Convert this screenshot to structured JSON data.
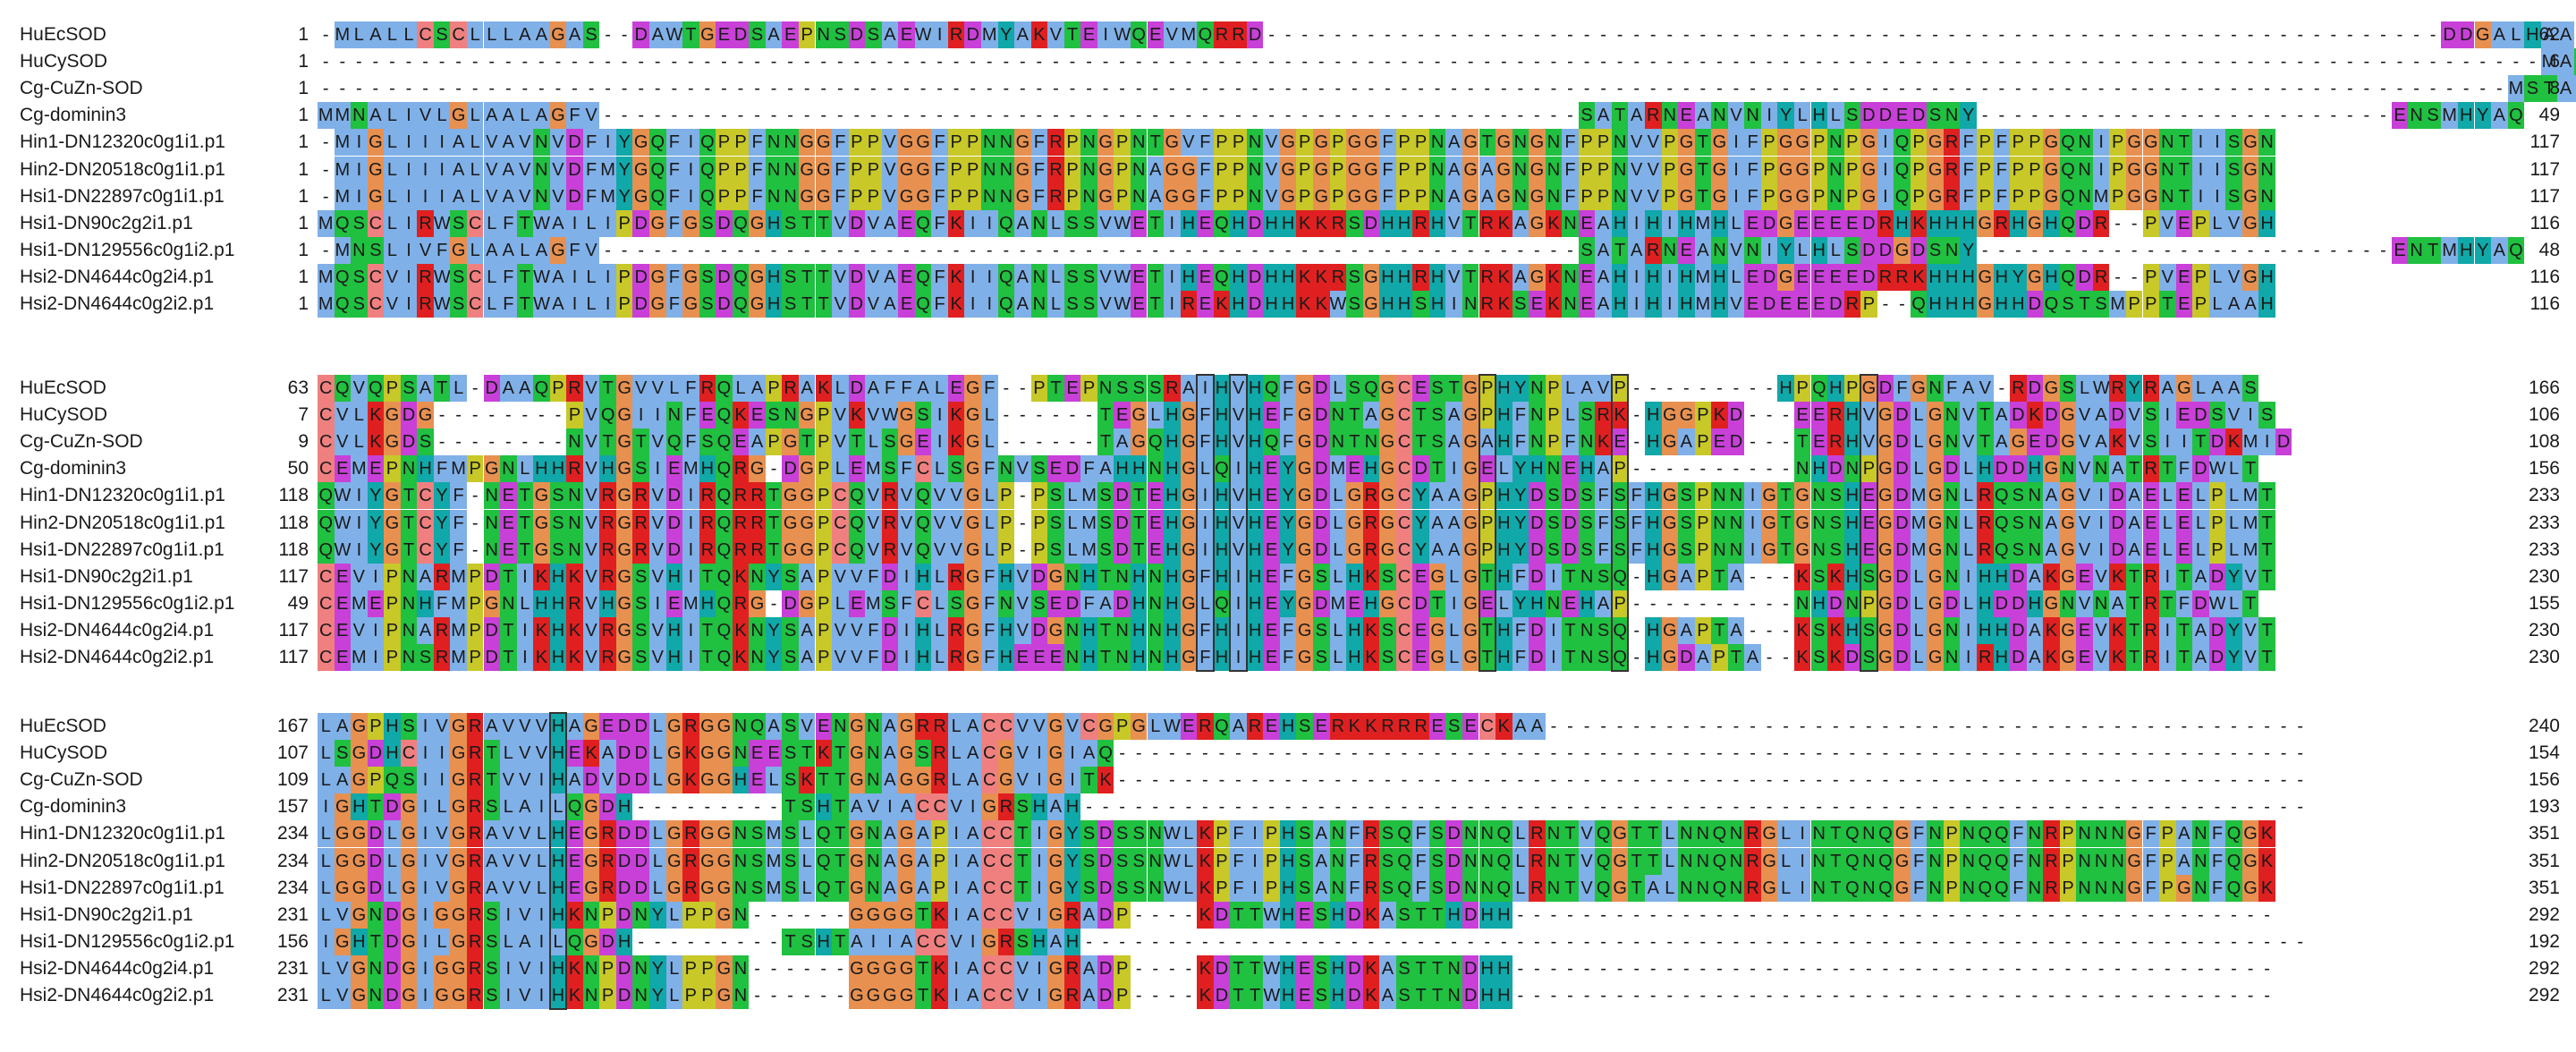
{
  "blocks": [
    {
      "rows": [
        {
          "name": "HuEcSOD",
          "start": "1",
          "end": "62",
          "seq": "-MLALLCSCLLLAAGAS--DAWTGEDSAEPNSDSAEWIRDMYAKVTEIWQEVMQRRD-----------------------------------------------------------------------DDGALHAA"
        },
        {
          "name": "HuCySOD",
          "start": "1",
          "end": "6",
          "seq": "--------------------------------------------------------------------------------------------------------------------------------------MATKAV"
        },
        {
          "name": "Cg-CuZn-SOD",
          "start": "1",
          "end": "8",
          "seq": "------------------------------------------------------------------------------------------------------------------------------------MSTALKAV"
        },
        {
          "name": "Cg-dominin3",
          "start": "1",
          "end": "49",
          "seq": "MMNALIVLGLAALAGFV-----------------------------------------------------------SATARNEANVNIYLHLSDDEDSNY-------------------------ENSMHYAQ"
        },
        {
          "name": "Hin1-DN12320c0g1i1.p1",
          "start": "1",
          "end": "117",
          "seq": "-MIGLIIIALVAVNVDFIYGQFIQPPFNNGGFPPVGGFPPNNGFRPNGPNTGVFPPNVGPGPGGFPPNAGTGNGNFPPNVVPGTGIFPGGPNPGIQPGRFPFPPGQNIPGGNTIISGN"
        },
        {
          "name": "Hin2-DN20518c0g1i1.p1",
          "start": "1",
          "end": "117",
          "seq": "-MIGLIIIALVAVNVDFMYGQFIQPPFNNGGFPPVGGFPPNNGFRPNGPNAGGFPPNVGPGPGGFPPNAGAGNGNFPPNVVPGTGIFPGGPNPGIQPGRFPFPPGQNIPGGNTIISGN"
        },
        {
          "name": "Hsi1-DN22897c0g1i1.p1",
          "start": "1",
          "end": "117",
          "seq": "-MIGLIIIALVAVNVDFMYGQFIQPPFNNGGFPPVGGFPPNNGFRPNGPNAGGFPPNVGPGPGGFPPNAGAGNGNFPPNVVPGTGIFPGGPNPGIQPGRFPFPPGQNMPGGNTIISGN"
        },
        {
          "name": "Hsi1-DN90c2g2i1.p1",
          "start": "1",
          "end": "116",
          "seq": "MQSCLIRWSCLFTWAILIPDGFGSDQGHSTTVDVAEQFKIIQANLSSVWETIHEQHDHHKKRSDHHRHVTRKAGKNEAHIHIHMHLEDGEEEEDRHKHHHGRHGHQDR--PVEPLVGH"
        },
        {
          "name": "Hsi1-DN129556c0g1i2.p1",
          "start": "1",
          "end": "48",
          "seq": "-MNSLIVFGLAALAGFV-----------------------------------------------------------SATARNEANVNIYLHLSDDGDSNY-------------------------ENTMHYAQ"
        },
        {
          "name": "Hsi2-DN4644c0g2i4.p1",
          "start": "1",
          "end": "116",
          "seq": "MQSCVIRWSCLFTWAILIPDGFGSDQGHSTTVDVAEQFKIIQANLSSVWETIHEQHDHHKKRSGHHRHVTRKAGKNEAHIHIHMHLEDGEEEEDRRKHHHGHYGHQDR--PVEPLVGH"
        },
        {
          "name": "Hsi2-DN4644c0g2i2.p1",
          "start": "1",
          "end": "116",
          "seq": "MQSCVIRWSCLFTWAILIPDGFGSDQGHSTTVDVAEQFKIIQANLSSVWETIREKHDHHKKWSGHHSHINRKSEKNEAHIHIHMHVEDEEEDRP--QHHHGHHDQSTSMPPTEPLAAH"
        }
      ]
    },
    {
      "rows": [
        {
          "name": "HuEcSOD",
          "start": "63",
          "end": "166",
          "seq": "CQVQPSATL-DAAQPRVTGVVLFRQLAPRAKLDAFFALEGF--PTEPNSSSRAIHVHQFGDLSQGCESTGPHYNPLAVP---------HPQHPGDFGNFAV-RDGSLWRYRAGLAAS"
        },
        {
          "name": "HuCySOD",
          "start": "7",
          "end": "106",
          "seq": "CVLKGDG--------PVQGIINFEQKESNGPVKVWGSIKGL------TEGLHGFHVHEFGDNTAGCTSAGPHFNPLSRK-HGGPKD---EERHVGDLGNVTADKDGVADVSIEDSVIS"
        },
        {
          "name": "Cg-CuZn-SOD",
          "start": "9",
          "end": "108",
          "seq": "CVLKGDS--------NVTGTVQFSQEAPGTPVTLSGEIKGL------TAGQHGFHVHQFGDNTNGCTSAGAHFNPFNKE-HGAPED---TERHVGDLGNVTAGEDGVAKVSIITDKMID"
        },
        {
          "name": "Cg-dominin3",
          "start": "50",
          "end": "156",
          "seq": "CEMEPNHFMPGNLHHRVHGSIEMHQRG-DGPLEMSFCLSGFNVSEDFAHHNHGLQIHEYGDMEHGCDTIGELYHNEHAP----------NHDNPGDLGDLHDDHGNVNATRTFDWLT"
        },
        {
          "name": "Hin1-DN12320c0g1i1.p1",
          "start": "118",
          "end": "233",
          "seq": "QWIYGTCYF-NETGSNVRGRVDIRQRRTGGPCQVRVQVVGLP-PSLMSDTEHGIHVHEYGDLGRGCYAAGPHYDSDSFSFHGSPNNIGTGNSHEGDMGNLRQSNAGVIDAELELPLMT"
        },
        {
          "name": "Hin2-DN20518c0g1i1.p1",
          "start": "118",
          "end": "233",
          "seq": "QWIYGTCYF-NETGSNVRGRVDIRQRRTGGPCQVRVQVVGLP-PSLMSDTEHGIHVHEYGDLGRGCYAAGPHYDSDSFSFHGSPNNIGTGNSHEGDMGNLRQSNAGVIDAELELPLMT"
        },
        {
          "name": "Hsi1-DN22897c0g1i1.p1",
          "start": "118",
          "end": "233",
          "seq": "QWIYGTCYF-NETGSNVRGRVDIRQRRTGGPCQVRVQVVGLP-PSLMSDTEHGIHVHEYGDLGRGCYAAGPHYDSDSFSFHGSPNNIGTGNSHEGDMGNLRQSNAGVIDAELELPLMT"
        },
        {
          "name": "Hsi1-DN90c2g2i1.p1",
          "start": "117",
          "end": "230",
          "seq": "CEVIPNARMPDTIKHKVRGSVHITQKNYSAPVVFDIHLRGFHVDGNHTNHNHGFHIHEFGSLHKSCEGLGTHFDITNSQ-HGAPTA---KSKHSGDLGNIHHDAKGEVKTRITADYVT"
        },
        {
          "name": "Hsi1-DN129556c0g1i2.p1",
          "start": "49",
          "end": "155",
          "seq": "CEMEPNHFMPGNLHHRVHGSIEMHQRG-DGPLEMSFCLSGFNVSEDFADHNHGLQIHEYGDMEHGCDTIGELYHNEHAP----------NHDNPGDLGDLHDDHGNVNATRTFDWLT"
        },
        {
          "name": "Hsi2-DN4644c0g2i4.p1",
          "start": "117",
          "end": "230",
          "seq": "CEVIPNARMPDTIKHKVRGSVHITQKNYSAPVVFDIHLRGFHVDGNHTNHNHGFHIHEFGSLHKSCEGLGTHFDITNSQ-HGAPTA---KSKHSGDLGNIHHDAKGEVKTRITADYVT"
        },
        {
          "name": "Hsi2-DN4644c0g2i2.p1",
          "start": "117",
          "end": "230",
          "seq": "CEMIPNSRMPDTIKHKVRGSVHITQKNYSAPVVFDIHLRGFHEEENHTNHNHGFHIHEFGSLHKSCEGLGTHFDITNSQ-HGDAPTA--KSKDSGDLGNIRHDAKGEVKTRITADYVT"
        }
      ]
    },
    {
      "rows": [
        {
          "name": "HuEcSOD",
          "start": "167",
          "end": "240",
          "seq": "LAGPHSIVGRAVVVHAGEDDLGRGGNQASVENGNAGRRLACCVVGVCGPGLWERQAREHSERKKRRRESECKAA----------------------------------------------"
        },
        {
          "name": "HuCySOD",
          "start": "107",
          "end": "154",
          "seq": "LSGDHCIIGRTLVVHEKADDLGKGGNEESTKTGNAGSRLACGVIGIAQ------------------------------------------------------------------------"
        },
        {
          "name": "Cg-CuZn-SOD",
          "start": "109",
          "end": "156",
          "seq": "LAGPQSIIGRTVVIHADVDDLGKGGHELSKTTGNAGGRLACGVIGITK------------------------------------------------------------------------"
        },
        {
          "name": "Cg-dominin3",
          "start": "157",
          "end": "193",
          "seq": "IGHTDGILGRSLAILQGDH---------TSHTAVIACCVIGRSHAH--------------------------------------------------------------------------"
        },
        {
          "name": "Hin1-DN12320c0g1i1.p1",
          "start": "234",
          "end": "351",
          "seq": "LGGDLGIVGRAVVLHEGRDDLGRGGNSMSLQTGNAGAPIACCTIGYSDSSNWLKPFIPHSANFRSQFSDNNQLRNTVQGTTLNNQNRGLINTQNQGFNPNQQFNRPNNNGFPANFQGK"
        },
        {
          "name": "Hin2-DN20518c0g1i1.p1",
          "start": "234",
          "end": "351",
          "seq": "LGGDLGIVGRAVVLHEGRDDLGRGGNSMSLQTGNAGAPIACCTIGYSDSSNWLKPFIPHSANFRSQFSDNNQLRNTVQGTTLNNQNRGLINTQNQGFNPNQQFNRPNNNGFPANFQGK"
        },
        {
          "name": "Hsi1-DN22897c0g1i1.p1",
          "start": "234",
          "end": "351",
          "seq": "LGGDLGIVGRAVVLHEGRDDLGRGGNSMSLQTGNAGAPIACCTIGYSDSSNWLKPFIPHSANFRSQFSDNNQLRNTVQGTALNNQNRGLINTQNQGFNPNQQFNRPNNNGFPGNFQGK"
        },
        {
          "name": "Hsi1-DN90c2g2i1.p1",
          "start": "231",
          "end": "292",
          "seq": "LVGNDGIGGRSIVIHKNPDNYLPPGN------GGGGTKIACCVIGRADP----KDTTWHESHDKASTTHDHH----------------------------------------------"
        },
        {
          "name": "Hsi1-DN129556c0g1i2.p1",
          "start": "156",
          "end": "192",
          "seq": "IGHTDGILGRSLAILQGDH---------TSHTAIIACCVIGRSHAH--------------------------------------------------------------------------"
        },
        {
          "name": "Hsi2-DN4644c0g2i4.p1",
          "start": "231",
          "end": "292",
          "seq": "LVGNDGIGGRSIVIHKNPDNYLPPGN------GGGGTKIACCVIGRADP----KDTTWHESHDKASTTNDHH----------------------------------------------"
        },
        {
          "name": "Hsi2-DN4644c0g2i2.p1",
          "start": "231",
          "end": "292",
          "seq": "LVGNDGIGGRSIVIHKNPDNYLPPGN------GGGGTKIACCVIGRADP----KDTTWHESHDKASTTNDHH----------------------------------------------"
        }
      ]
    }
  ],
  "residue_colors": {
    "hydrophobic": "#80b0e8",
    "glycine": "#e89050",
    "proline": "#c8c828",
    "polar": "#20c040",
    "histidine": "#10a8a8",
    "acidic": "#c840d8",
    "basic": "#e02020",
    "cysteine": "#f08080"
  }
}
